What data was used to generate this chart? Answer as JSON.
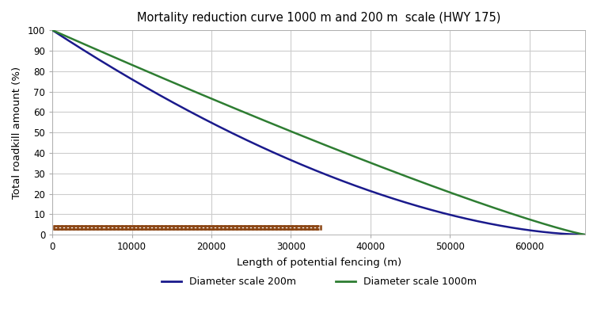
{
  "title": "Mortality reduction curve 1000 m and 200 m  scale (HWY 175)",
  "xlabel": "Length of potential fencing (m)",
  "ylabel": "Total roadkill amount (%)",
  "xlim": [
    0,
    67000
  ],
  "ylim": [
    0,
    100
  ],
  "xticks": [
    0,
    10000,
    20000,
    30000,
    40000,
    50000,
    60000
  ],
  "yticks": [
    0,
    10,
    20,
    30,
    40,
    50,
    60,
    70,
    80,
    90,
    100
  ],
  "curve_200m_color": "#1a1a8c",
  "curve_1000m_color": "#2e7d32",
  "background_color": "#ffffff",
  "grid_color": "#cccccc",
  "legend_label_200m": "Diameter scale 200m",
  "legend_label_1000m": "Diameter scale 1000m",
  "fence_color": "#8B4513",
  "fence_y": 3.0,
  "fence_x_start": 200,
  "fence_x_end": 33500,
  "max_x": 67000,
  "power_200m": 1.7,
  "power_1000m": 1.15
}
